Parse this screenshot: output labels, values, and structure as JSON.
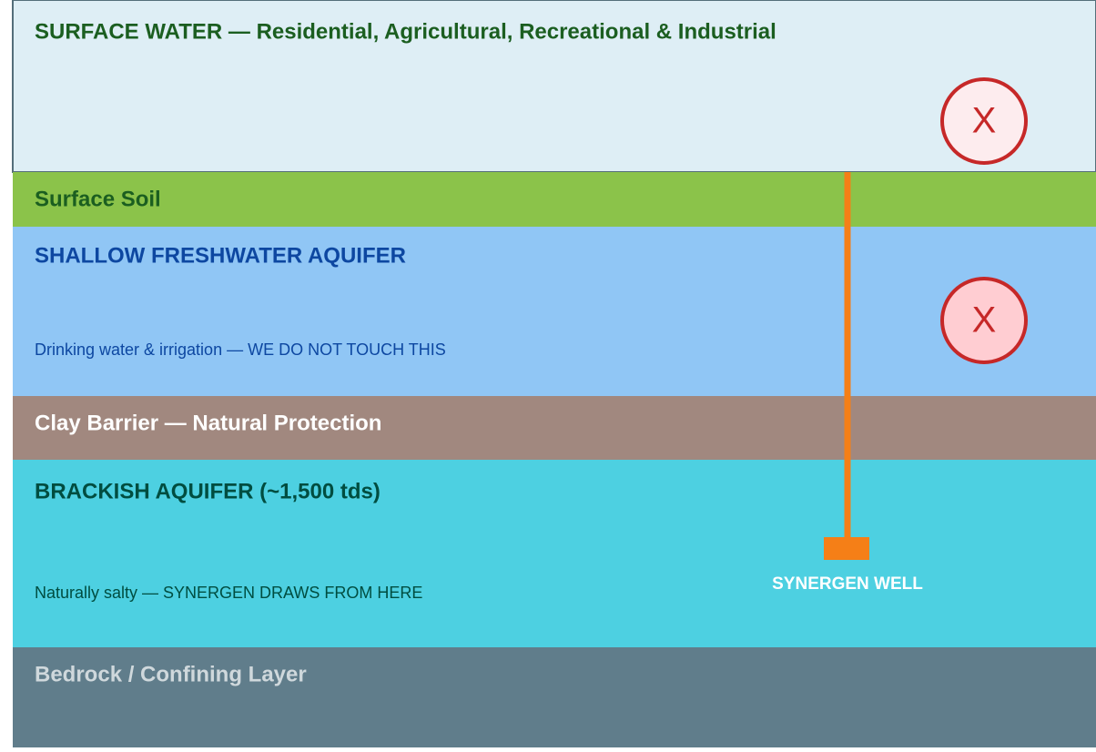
{
  "layers": [
    {
      "title": "SURFACE WATER — Residential, Agricultural, Recreational & Industrial"
    },
    {
      "title": "Surface Soil"
    },
    {
      "title": "SHALLOW FRESHWATER AQUIFER",
      "subtitle": "Drinking water & irrigation — WE DO NOT TOUCH THIS"
    },
    {
      "title": "Clay Barrier — Natural Protection"
    },
    {
      "title": "BRACKISH AQUIFER (~1,500 tds)",
      "subtitle": "Naturally salty — SYNERGEN DRAWS FROM HERE"
    },
    {
      "title": "Bedrock / Confining Layer"
    }
  ],
  "well": {
    "label": "SYNERGEN WELL"
  },
  "markers": [
    {
      "label": "X"
    },
    {
      "label": "X"
    }
  ]
}
